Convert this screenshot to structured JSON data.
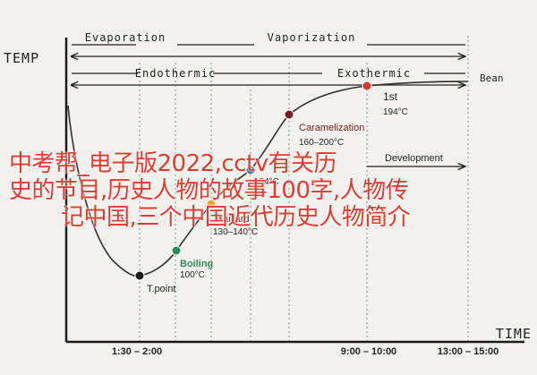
{
  "chart_data": {
    "type": "line",
    "ylabel": "TEMP",
    "xlabel": "TIME",
    "x_ticks": [
      "1:30 – 2:00",
      "9:00 – 10:00",
      "13:00 – 15:00"
    ],
    "phases_top": [
      "Evaporation",
      "Vaporization"
    ],
    "phases_mid": [
      "Endothermic",
      "Exothermic"
    ],
    "series_name": "Bean",
    "development_label": "Development",
    "stages": [
      {
        "name": "T.point",
        "temp": "",
        "color": "#1b1b1b"
      },
      {
        "name": "Boiling",
        "temp": "100°C",
        "color": "#2e8b57"
      },
      {
        "name": "Maillard",
        "temp": "130–140°C",
        "color": "#e0a62a"
      },
      {
        "name": "",
        "temp": "154°C",
        "color": "#3a6aa8"
      },
      {
        "name": "Caramelization",
        "temp": "160–200°C",
        "color": "#7a1c1c"
      },
      {
        "name": "1st",
        "temp": "194°C",
        "color": "#d9352b"
      }
    ]
  },
  "overlay": {
    "color": "#e8382c",
    "lines": [
      "中考帮_电子版2022,cctv有关历",
      "史的节目,历史人物的故事100字,人物传",
      "记中国,三个中国近代历史人物简介"
    ]
  }
}
